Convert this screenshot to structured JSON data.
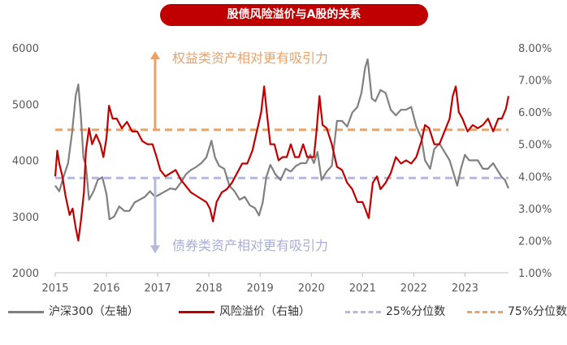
{
  "title": "股债风险溢价与A股的关系",
  "annotations": {
    "upper": "权益类资产相对更有吸引力",
    "lower": "债券类资产相对更有吸引力"
  },
  "legend": {
    "hs300": "沪深300（左轴）",
    "erp": "风险溢价（右轴）",
    "q25": "25%分位数",
    "q75": "75%分位数"
  },
  "colors": {
    "title_bg": "#c00000",
    "hs300": "#808080",
    "erp": "#c00000",
    "q25": "#b4b9dc",
    "q75": "#e8a26a",
    "arrow_up": "#e8a26a",
    "arrow_down": "#b4b9dc"
  },
  "chart_data": {
    "type": "line",
    "x_range": [
      2015.0,
      2023.85
    ],
    "x_ticks": [
      "2015",
      "2016",
      "2017",
      "2018",
      "2019",
      "2020",
      "2021",
      "2022",
      "2023"
    ],
    "left_axis": {
      "range": [
        2000,
        6000
      ],
      "ticks": [
        "2000",
        "3000",
        "4000",
        "5000",
        "6000"
      ]
    },
    "right_axis": {
      "range": [
        1.0,
        8.0
      ],
      "unit": "%",
      "ticks": [
        "1.00%",
        "2.00%",
        "3.00%",
        "4.00%",
        "5.00%",
        "6.00%",
        "7.00%",
        "8.00%"
      ]
    },
    "grid": false,
    "legend_position": "bottom",
    "series": [
      {
        "name": "沪深300（左轴）",
        "axis": "left",
        "points": [
          [
            2015.0,
            3550
          ],
          [
            2015.08,
            3450
          ],
          [
            2015.16,
            3700
          ],
          [
            2015.25,
            3950
          ],
          [
            2015.33,
            4500
          ],
          [
            2015.4,
            5150
          ],
          [
            2015.45,
            5350
          ],
          [
            2015.5,
            4800
          ],
          [
            2015.55,
            4050
          ],
          [
            2015.6,
            3900
          ],
          [
            2015.66,
            3300
          ],
          [
            2015.75,
            3450
          ],
          [
            2015.83,
            3650
          ],
          [
            2015.92,
            3700
          ],
          [
            2016.0,
            3400
          ],
          [
            2016.06,
            2950
          ],
          [
            2016.15,
            3000
          ],
          [
            2016.25,
            3180
          ],
          [
            2016.35,
            3100
          ],
          [
            2016.45,
            3100
          ],
          [
            2016.55,
            3250
          ],
          [
            2016.65,
            3300
          ],
          [
            2016.75,
            3350
          ],
          [
            2016.85,
            3450
          ],
          [
            2016.95,
            3350
          ],
          [
            2017.05,
            3400
          ],
          [
            2017.15,
            3450
          ],
          [
            2017.25,
            3500
          ],
          [
            2017.35,
            3480
          ],
          [
            2017.45,
            3600
          ],
          [
            2017.55,
            3750
          ],
          [
            2017.65,
            3830
          ],
          [
            2017.75,
            3880
          ],
          [
            2017.85,
            3950
          ],
          [
            2017.95,
            4050
          ],
          [
            2018.05,
            4350
          ],
          [
            2018.12,
            4050
          ],
          [
            2018.2,
            3900
          ],
          [
            2018.3,
            3850
          ],
          [
            2018.4,
            3550
          ],
          [
            2018.5,
            3450
          ],
          [
            2018.6,
            3300
          ],
          [
            2018.7,
            3350
          ],
          [
            2018.8,
            3200
          ],
          [
            2018.9,
            3150
          ],
          [
            2018.98,
            3020
          ],
          [
            2019.05,
            3250
          ],
          [
            2019.12,
            3700
          ],
          [
            2019.2,
            3920
          ],
          [
            2019.3,
            3750
          ],
          [
            2019.4,
            3650
          ],
          [
            2019.5,
            3850
          ],
          [
            2019.6,
            3800
          ],
          [
            2019.7,
            3900
          ],
          [
            2019.8,
            3950
          ],
          [
            2019.9,
            3950
          ],
          [
            2019.98,
            4100
          ],
          [
            2020.05,
            3950
          ],
          [
            2020.12,
            4150
          ],
          [
            2020.2,
            3650
          ],
          [
            2020.3,
            3800
          ],
          [
            2020.4,
            3900
          ],
          [
            2020.5,
            4700
          ],
          [
            2020.6,
            4700
          ],
          [
            2020.7,
            4600
          ],
          [
            2020.8,
            4850
          ],
          [
            2020.9,
            4950
          ],
          [
            2020.98,
            5200
          ],
          [
            2021.05,
            5650
          ],
          [
            2021.1,
            5800
          ],
          [
            2021.18,
            5100
          ],
          [
            2021.25,
            5050
          ],
          [
            2021.35,
            5250
          ],
          [
            2021.45,
            5200
          ],
          [
            2021.55,
            4900
          ],
          [
            2021.65,
            4800
          ],
          [
            2021.75,
            4900
          ],
          [
            2021.85,
            4900
          ],
          [
            2021.95,
            4950
          ],
          [
            2022.05,
            4600
          ],
          [
            2022.15,
            4400
          ],
          [
            2022.22,
            4000
          ],
          [
            2022.32,
            3850
          ],
          [
            2022.4,
            4200
          ],
          [
            2022.5,
            4300
          ],
          [
            2022.6,
            4150
          ],
          [
            2022.7,
            4000
          ],
          [
            2022.8,
            3700
          ],
          [
            2022.85,
            3550
          ],
          [
            2022.92,
            3850
          ],
          [
            2023.0,
            4100
          ],
          [
            2023.08,
            4000
          ],
          [
            2023.15,
            4000
          ],
          [
            2023.25,
            4000
          ],
          [
            2023.35,
            3850
          ],
          [
            2023.45,
            3850
          ],
          [
            2023.55,
            3950
          ],
          [
            2023.65,
            3800
          ],
          [
            2023.72,
            3700
          ],
          [
            2023.78,
            3650
          ],
          [
            2023.85,
            3500
          ]
        ]
      },
      {
        "name": "风险溢价（右轴）",
        "axis": "right",
        "points": [
          [
            2015.0,
            4.0
          ],
          [
            2015.04,
            4.8
          ],
          [
            2015.08,
            4.4
          ],
          [
            2015.14,
            4.0
          ],
          [
            2015.2,
            3.4
          ],
          [
            2015.28,
            2.8
          ],
          [
            2015.34,
            3.0
          ],
          [
            2015.4,
            2.4
          ],
          [
            2015.45,
            2.0
          ],
          [
            2015.5,
            2.6
          ],
          [
            2015.56,
            3.5
          ],
          [
            2015.6,
            4.8
          ],
          [
            2015.66,
            5.5
          ],
          [
            2015.72,
            5.0
          ],
          [
            2015.8,
            5.3
          ],
          [
            2015.88,
            5.0
          ],
          [
            2015.94,
            4.6
          ],
          [
            2016.0,
            5.2
          ],
          [
            2016.05,
            6.2
          ],
          [
            2016.12,
            5.8
          ],
          [
            2016.2,
            5.8
          ],
          [
            2016.3,
            5.5
          ],
          [
            2016.4,
            5.7
          ],
          [
            2016.5,
            5.4
          ],
          [
            2016.6,
            5.4
          ],
          [
            2016.7,
            5.1
          ],
          [
            2016.8,
            5.0
          ],
          [
            2016.9,
            5.0
          ],
          [
            2016.98,
            4.6
          ],
          [
            2017.05,
            4.2
          ],
          [
            2017.15,
            4.0
          ],
          [
            2017.25,
            4.1
          ],
          [
            2017.35,
            4.2
          ],
          [
            2017.45,
            3.9
          ],
          [
            2017.55,
            3.7
          ],
          [
            2017.65,
            3.5
          ],
          [
            2017.75,
            3.4
          ],
          [
            2017.85,
            3.3
          ],
          [
            2017.95,
            3.2
          ],
          [
            2018.02,
            3.0
          ],
          [
            2018.08,
            2.6
          ],
          [
            2018.15,
            3.2
          ],
          [
            2018.25,
            3.5
          ],
          [
            2018.35,
            3.6
          ],
          [
            2018.45,
            3.8
          ],
          [
            2018.55,
            4.1
          ],
          [
            2018.65,
            4.4
          ],
          [
            2018.75,
            4.4
          ],
          [
            2018.85,
            4.8
          ],
          [
            2018.95,
            5.5
          ],
          [
            2019.02,
            6.0
          ],
          [
            2019.08,
            6.8
          ],
          [
            2019.13,
            6.0
          ],
          [
            2019.2,
            5.0
          ],
          [
            2019.28,
            5.0
          ],
          [
            2019.36,
            4.5
          ],
          [
            2019.44,
            4.6
          ],
          [
            2019.52,
            4.6
          ],
          [
            2019.6,
            5.0
          ],
          [
            2019.68,
            4.6
          ],
          [
            2019.76,
            4.6
          ],
          [
            2019.84,
            5.0
          ],
          [
            2019.92,
            4.6
          ],
          [
            2020.0,
            4.6
          ],
          [
            2020.05,
            4.6
          ],
          [
            2020.1,
            5.4
          ],
          [
            2020.16,
            6.5
          ],
          [
            2020.22,
            5.6
          ],
          [
            2020.3,
            5.5
          ],
          [
            2020.4,
            5.0
          ],
          [
            2020.5,
            4.3
          ],
          [
            2020.6,
            4.2
          ],
          [
            2020.7,
            3.8
          ],
          [
            2020.8,
            3.6
          ],
          [
            2020.9,
            3.2
          ],
          [
            2021.0,
            3.2
          ],
          [
            2021.05,
            3.0
          ],
          [
            2021.12,
            2.7
          ],
          [
            2021.2,
            3.8
          ],
          [
            2021.28,
            4.0
          ],
          [
            2021.35,
            3.6
          ],
          [
            2021.45,
            3.8
          ],
          [
            2021.55,
            4.1
          ],
          [
            2021.65,
            4.6
          ],
          [
            2021.75,
            4.4
          ],
          [
            2021.85,
            4.5
          ],
          [
            2021.95,
            4.4
          ],
          [
            2022.05,
            4.6
          ],
          [
            2022.15,
            5.1
          ],
          [
            2022.22,
            5.6
          ],
          [
            2022.3,
            5.5
          ],
          [
            2022.4,
            5.0
          ],
          [
            2022.5,
            5.0
          ],
          [
            2022.6,
            5.4
          ],
          [
            2022.7,
            5.8
          ],
          [
            2022.76,
            6.5
          ],
          [
            2022.82,
            6.8
          ],
          [
            2022.88,
            6.0
          ],
          [
            2022.95,
            5.8
          ],
          [
            2023.05,
            5.4
          ],
          [
            2023.15,
            5.6
          ],
          [
            2023.25,
            5.5
          ],
          [
            2023.35,
            5.6
          ],
          [
            2023.45,
            5.8
          ],
          [
            2023.55,
            5.4
          ],
          [
            2023.65,
            5.8
          ],
          [
            2023.72,
            5.8
          ],
          [
            2023.8,
            6.1
          ],
          [
            2023.85,
            6.5
          ]
        ]
      },
      {
        "name": "25%分位数",
        "axis": "right",
        "style": "dashed",
        "value": 3.95
      },
      {
        "name": "75%分位数",
        "axis": "right",
        "style": "dashed",
        "value": 5.45
      }
    ],
    "arrows": [
      {
        "label": "权益类资产相对更有吸引力",
        "direction": "up",
        "x": 2016.95,
        "from": 5.45,
        "to": 7.9
      },
      {
        "label": "债券类资产相对更有吸引力",
        "direction": "down",
        "x": 2016.95,
        "from": 3.95,
        "to": 1.6
      }
    ]
  }
}
